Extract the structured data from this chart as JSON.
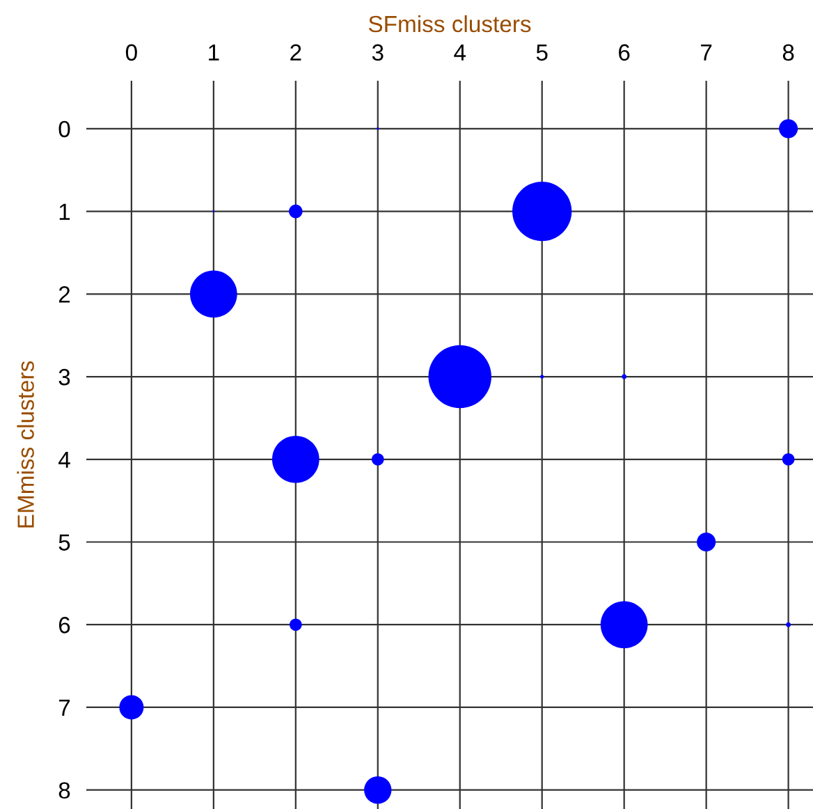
{
  "chart_data": {
    "type": "bubble",
    "xlabel": "SFmiss clusters",
    "ylabel": "EMmiss clusters",
    "x": [
      4,
      5,
      1,
      2,
      6,
      3,
      0,
      7,
      8,
      2,
      3,
      8,
      2,
      8,
      6,
      5,
      3,
      1
    ],
    "values": [
      3,
      1,
      2,
      4,
      6,
      8,
      7,
      5,
      0,
      1,
      4,
      4,
      6,
      6,
      3,
      3,
      0,
      1
    ],
    "sizes": [
      1,
      0.89,
      0.56,
      0.56,
      0.56,
      0.19,
      0.15,
      0.09,
      0.09,
      0.047,
      0.038,
      0.038,
      0.038,
      0.006,
      0.006,
      0.0035,
      0.0015,
      0.001
    ],
    "color": "#0000ff",
    "xlim": [
      -0.55,
      8.3
    ],
    "ylim": [
      8.23,
      -0.58
    ],
    "xticks": [
      0,
      1,
      2,
      3,
      4,
      5,
      6,
      7,
      8
    ],
    "yticks": [
      0,
      1,
      2,
      3,
      4,
      5,
      6,
      7,
      8
    ],
    "grid": true
  }
}
